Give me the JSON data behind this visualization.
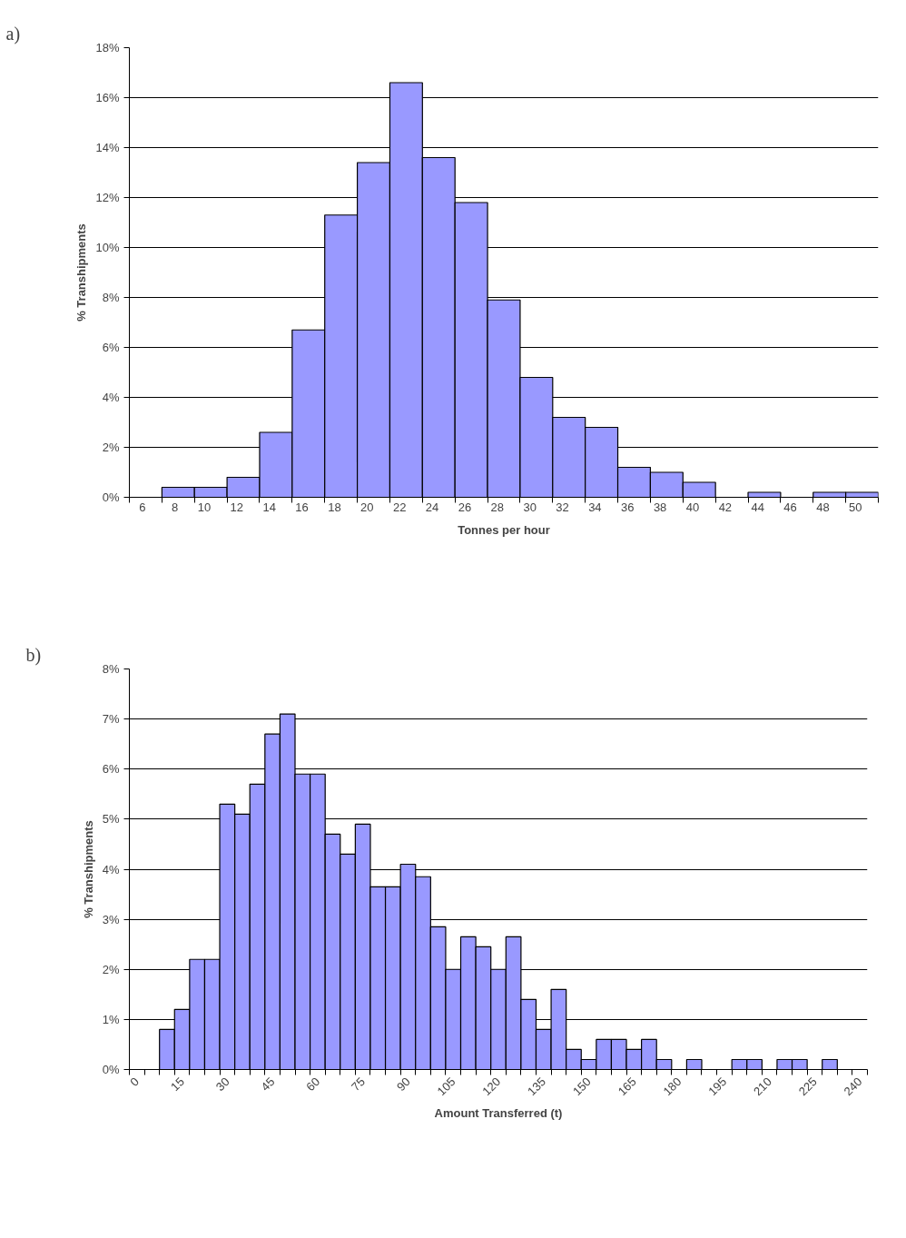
{
  "chart_data": [
    {
      "type": "bar",
      "title": "a)",
      "xlabel": "Tonnes per hour",
      "ylabel": "% Transhipments",
      "categories": [
        "6",
        "8",
        "10",
        "12",
        "14",
        "16",
        "18",
        "20",
        "22",
        "24",
        "26",
        "28",
        "30",
        "32",
        "34",
        "36",
        "38",
        "40",
        "42",
        "44",
        "46",
        "48",
        "50"
      ],
      "values": [
        null,
        0.4,
        0.4,
        0.8,
        2.6,
        6.7,
        11.3,
        13.4,
        16.6,
        13.6,
        11.8,
        7.9,
        4.8,
        3.2,
        2.8,
        1.2,
        1.0,
        0.6,
        null,
        0.2,
        null,
        0.2,
        0.2
      ],
      "color": "#9999ff",
      "ylim": [
        0,
        18
      ],
      "yticks": [
        {
          "value": 0,
          "label": "0%"
        },
        {
          "value": 2,
          "label": "2%"
        },
        {
          "value": 4,
          "label": "4%"
        },
        {
          "value": 6,
          "label": "6%"
        },
        {
          "value": 8,
          "label": "8%"
        },
        {
          "value": 10,
          "label": "10%"
        },
        {
          "value": 12,
          "label": "12%"
        },
        {
          "value": 14,
          "label": "14%"
        },
        {
          "value": 16,
          "label": "16%"
        },
        {
          "value": 18,
          "label": "18%"
        }
      ],
      "grid": "y"
    },
    {
      "type": "bar",
      "title": "b)",
      "xlabel": "Amount Transferred (t)",
      "ylabel": "% Transhipments",
      "categories": [
        "0",
        null,
        null,
        "15",
        null,
        null,
        "30",
        null,
        null,
        "45",
        null,
        null,
        "60",
        null,
        null,
        "75",
        null,
        null,
        "90",
        null,
        null,
        "105",
        null,
        null,
        "120",
        null,
        null,
        "135",
        null,
        null,
        "150",
        null,
        null,
        "165",
        null,
        null,
        "180",
        null,
        null,
        "195",
        null,
        null,
        "210",
        null,
        null,
        "225",
        null,
        null,
        "240"
      ],
      "values": [
        null,
        null,
        0.8,
        1.2,
        2.2,
        2.2,
        5.3,
        5.1,
        5.7,
        6.7,
        7.1,
        5.9,
        5.9,
        4.7,
        4.3,
        4.9,
        3.65,
        3.65,
        4.1,
        3.85,
        2.85,
        2.0,
        2.65,
        2.45,
        2.0,
        2.65,
        1.4,
        0.8,
        1.6,
        0.4,
        0.2,
        0.6,
        0.6,
        0.4,
        0.6,
        0.2,
        null,
        0.2,
        null,
        null,
        0.2,
        0.2,
        null,
        0.2,
        0.2,
        null,
        0.2,
        null,
        null
      ],
      "color": "#9999ff",
      "ylim": [
        0,
        8
      ],
      "yticks": [
        {
          "value": 0,
          "label": "0%"
        },
        {
          "value": 1,
          "label": "1%"
        },
        {
          "value": 2,
          "label": "2%"
        },
        {
          "value": 3,
          "label": "3%"
        },
        {
          "value": 4,
          "label": "4%"
        },
        {
          "value": 5,
          "label": "5%"
        },
        {
          "value": 6,
          "label": "6%"
        },
        {
          "value": 7,
          "label": "7%"
        },
        {
          "value": 8,
          "label": "8%"
        }
      ],
      "grid": "y"
    }
  ]
}
